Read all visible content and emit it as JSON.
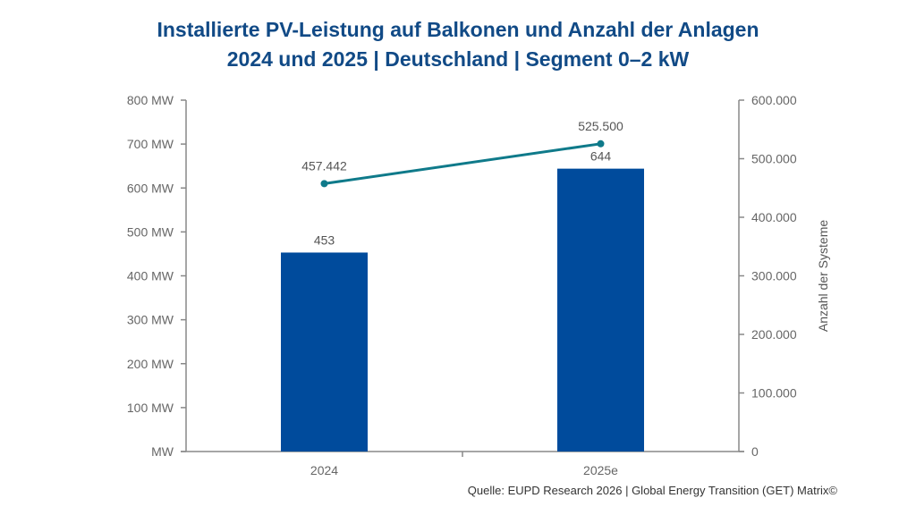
{
  "chart_data": {
    "type": "bar+line",
    "title": "Installierte PV-Leistung auf Balkonen und Anzahl der Anlagen",
    "subtitle": "2024 und 2025 | Deutschland | Segment 0–2 kW",
    "categories": [
      "2024",
      "2025e"
    ],
    "series": [
      {
        "type": "bar",
        "axis": "left",
        "values": [
          453,
          644
        ],
        "labels": [
          "453",
          "644"
        ],
        "color": "#004b9c"
      },
      {
        "type": "line",
        "axis": "right",
        "values": [
          457442,
          525500
        ],
        "labels": [
          "457.442",
          "525.500"
        ],
        "color": "#0f7a8a"
      }
    ],
    "y_left": {
      "range": [
        0,
        800
      ],
      "ticks": [
        0,
        100,
        200,
        300,
        400,
        500,
        600,
        700,
        800
      ],
      "tick_labels": [
        "MW",
        "100 MW",
        "200 MW",
        "300 MW",
        "400 MW",
        "500 MW",
        "600 MW",
        "700 MW",
        "800 MW"
      ]
    },
    "y_right": {
      "label": "Anzahl der Systeme",
      "range": [
        0,
        600000
      ],
      "ticks": [
        0,
        100000,
        200000,
        300000,
        400000,
        500000,
        600000
      ],
      "tick_labels": [
        "0",
        "100.000",
        "200.000",
        "300.000",
        "400.000",
        "500.000",
        "600.000"
      ]
    },
    "grid": false,
    "legend": "none"
  },
  "source": "Quelle: EUPD Research 2026 | Global Energy Transition (GET) Matrix©"
}
